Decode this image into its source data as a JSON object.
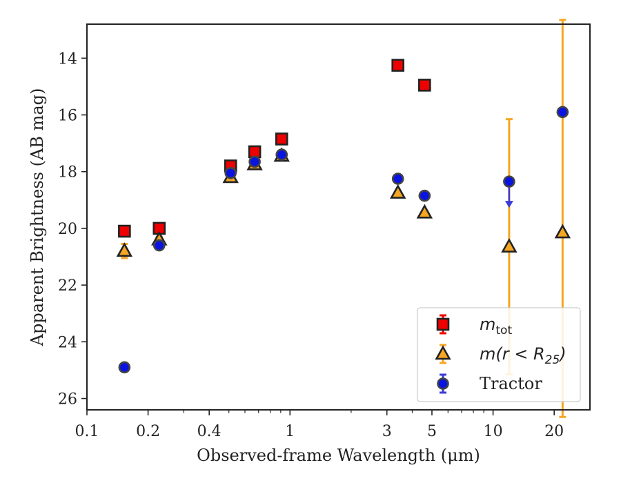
{
  "chart_data": {
    "type": "scatter",
    "xlabel": "Observed-frame Wavelength (μm)",
    "ylabel": "Apparent Brightness (AB mag)",
    "x_scale": "log",
    "y_inverted": true,
    "xlim": [
      0.1,
      30
    ],
    "ylim": [
      26.4,
      12.8
    ],
    "x_ticks": [
      0.1,
      0.2,
      0.4,
      1,
      3,
      5,
      10,
      20
    ],
    "x_tick_labels": [
      "0.1",
      "0.2",
      "0.4",
      "1",
      "3",
      "5",
      "10",
      "20"
    ],
    "y_ticks": [
      14,
      16,
      18,
      20,
      22,
      24,
      26
    ],
    "y_tick_labels": [
      "14",
      "16",
      "18",
      "20",
      "22",
      "24",
      "26"
    ],
    "legend_position": "lower-right",
    "series": [
      {
        "name": "m_tot",
        "legend_label": "m",
        "legend_sub": "tot",
        "marker": "square",
        "color": "#ee0000",
        "points": [
          {
            "x": 0.153,
            "y": 20.1
          },
          {
            "x": 0.227,
            "y": 20.0
          },
          {
            "x": 0.51,
            "y": 17.8
          },
          {
            "x": 0.67,
            "y": 17.3
          },
          {
            "x": 0.91,
            "y": 16.85
          },
          {
            "x": 3.4,
            "y": 14.25
          },
          {
            "x": 4.6,
            "y": 14.95
          }
        ]
      },
      {
        "name": "m(r<R25)",
        "legend_label": "m(r < R",
        "legend_sub": "25",
        "legend_tail": ")",
        "marker": "triangle",
        "color": "#f5a623",
        "points": [
          {
            "x": 0.153,
            "y": 20.8,
            "err": 0.25
          },
          {
            "x": 0.227,
            "y": 20.4,
            "err": 0.1
          },
          {
            "x": 0.51,
            "y": 18.2
          },
          {
            "x": 0.67,
            "y": 17.75
          },
          {
            "x": 0.91,
            "y": 17.45
          },
          {
            "x": 3.4,
            "y": 18.75
          },
          {
            "x": 4.6,
            "y": 19.45
          },
          {
            "x": 12,
            "y": 20.65,
            "err_up": 4.5,
            "err_down": 4.5
          },
          {
            "x": 22,
            "y": 20.15,
            "err_up": 7.5,
            "err_down": 6.5
          }
        ]
      },
      {
        "name": "Tractor",
        "legend_label": "Tractor",
        "marker": "circle",
        "color": "#0a14e0",
        "points": [
          {
            "x": 0.153,
            "y": 24.9
          },
          {
            "x": 0.227,
            "y": 20.6
          },
          {
            "x": 0.51,
            "y": 18.05
          },
          {
            "x": 0.67,
            "y": 17.65
          },
          {
            "x": 0.91,
            "y": 17.4
          },
          {
            "x": 3.4,
            "y": 18.25
          },
          {
            "x": 4.6,
            "y": 18.85
          },
          {
            "x": 12,
            "y": 18.35,
            "upper_limit": true
          },
          {
            "x": 22,
            "y": 15.9
          }
        ]
      }
    ]
  }
}
